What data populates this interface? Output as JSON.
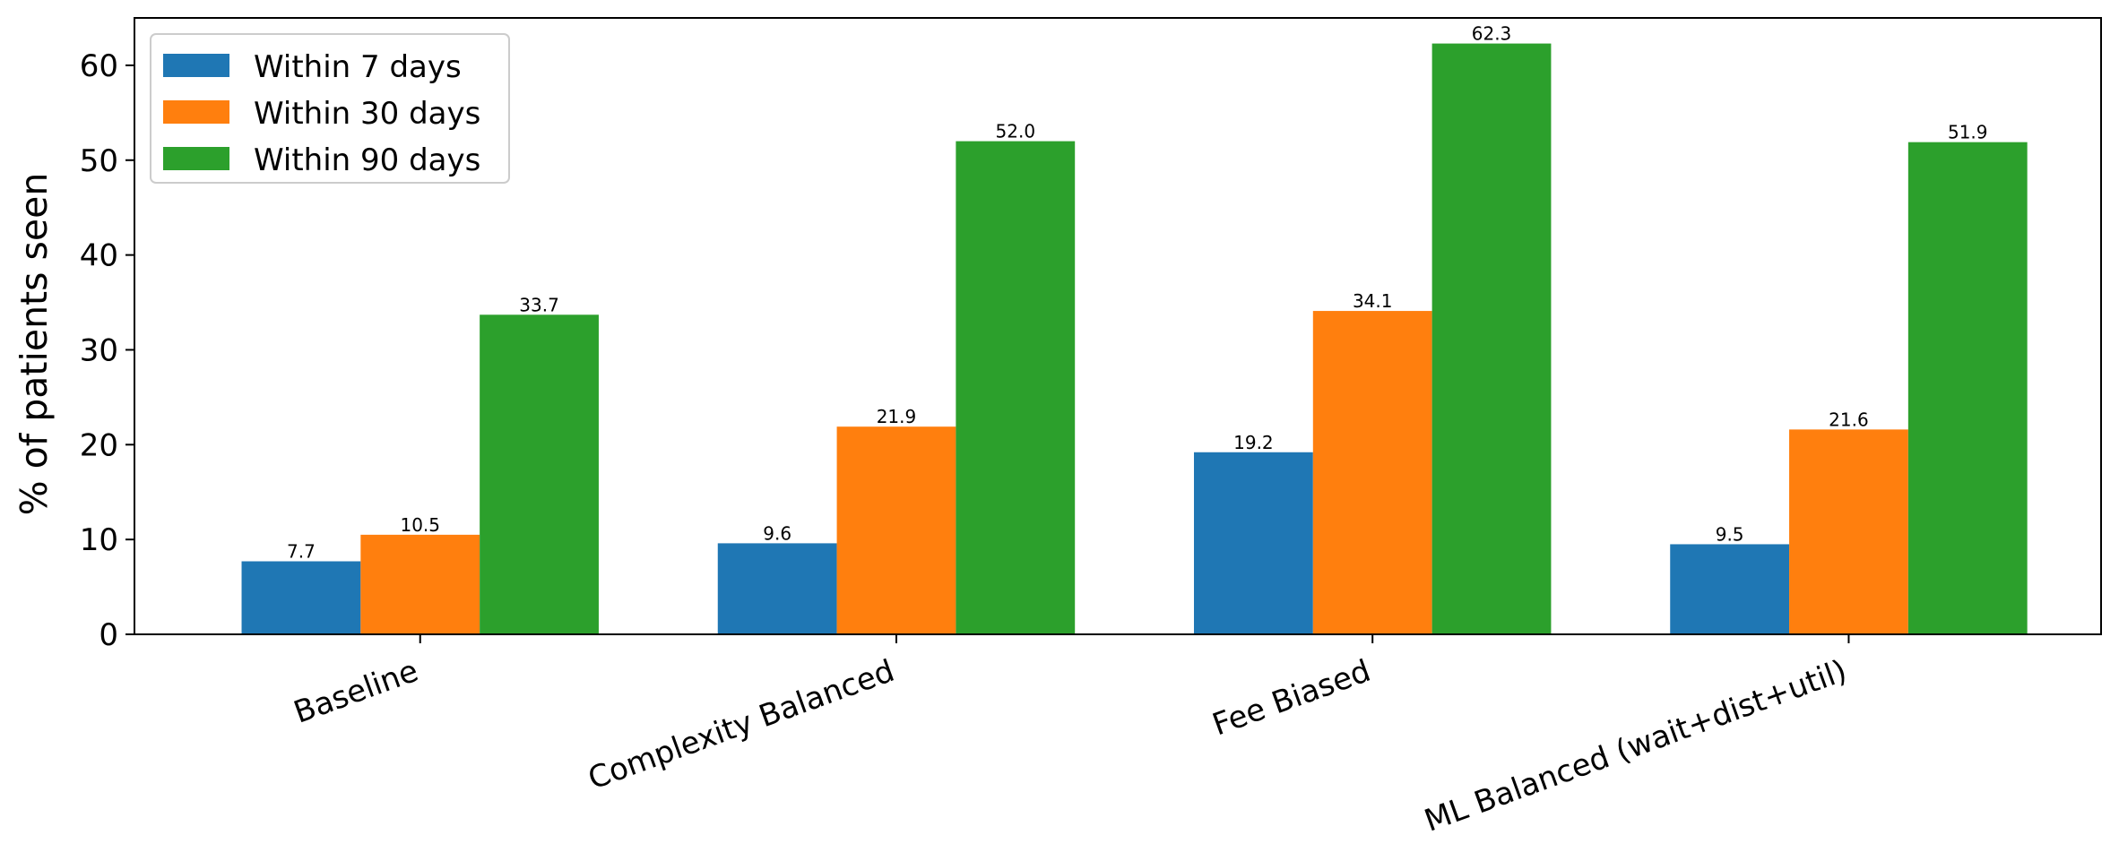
{
  "chart_data": {
    "type": "bar",
    "categories": [
      "Baseline",
      "Complexity Balanced",
      "Fee Biased",
      "ML Balanced (wait+dist+util)"
    ],
    "series": [
      {
        "name": "Within 7 days",
        "color": "#1f77b4",
        "values": [
          7.7,
          9.6,
          19.2,
          9.5
        ]
      },
      {
        "name": "Within 30 days",
        "color": "#ff7f0e",
        "values": [
          10.5,
          21.9,
          34.1,
          21.6
        ]
      },
      {
        "name": "Within 90 days",
        "color": "#2ca02c",
        "values": [
          33.7,
          52.0,
          62.3,
          51.9
        ]
      }
    ],
    "title": "",
    "xlabel": "",
    "ylabel": "% of patients seen",
    "ylim": [
      0,
      65
    ],
    "yticks": [
      0,
      10,
      20,
      30,
      40,
      50,
      60
    ],
    "grid": false,
    "legend_position": "top-left",
    "bar_labels": true,
    "bar_label_decimals": 1
  }
}
